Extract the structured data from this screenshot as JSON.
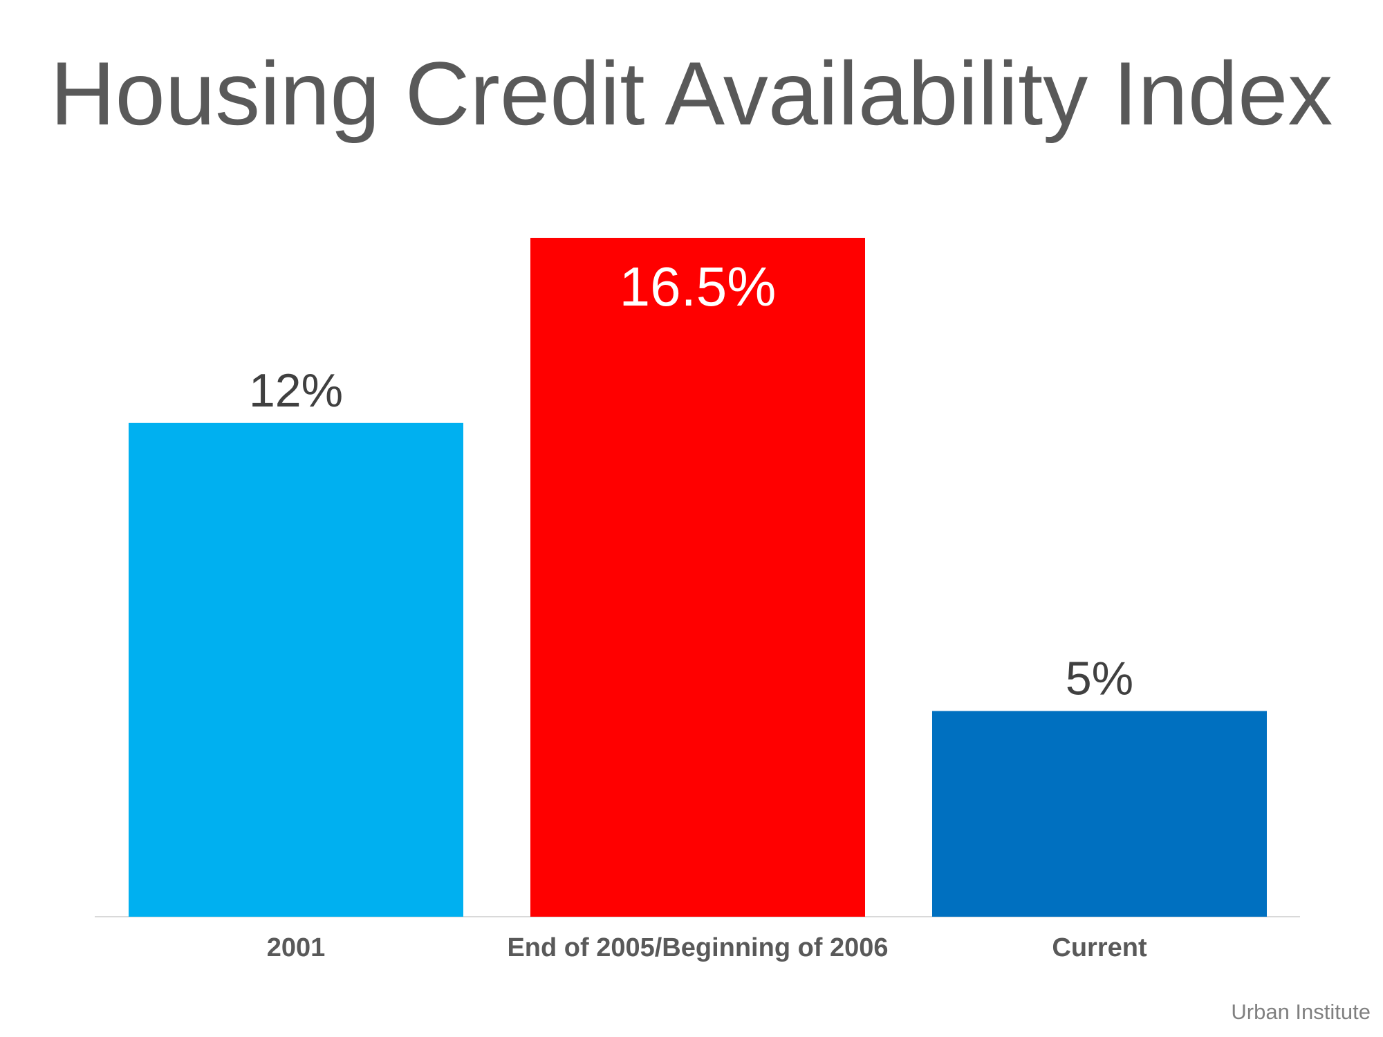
{
  "chart_data": {
    "type": "bar",
    "title": "Housing Credit Availability Index",
    "categories": [
      "2001",
      "End of 2005/Beginning of 2006",
      "Current"
    ],
    "values": [
      12,
      16.5,
      5
    ],
    "value_labels": [
      "12%",
      "16.5%",
      "5%"
    ],
    "unit": "%",
    "bar_colors": [
      "#00B0F0",
      "#FF0000",
      "#0070C0"
    ],
    "ylim": [
      0,
      16.5
    ],
    "grid": false,
    "legend": "none",
    "xlabel": "",
    "ylabel": ""
  },
  "source": "Urban Institute",
  "colors": {
    "title": "#595959",
    "category_label": "#595959",
    "value_label_dark": "#404040",
    "value_label_on_bar": "#ffffff",
    "baseline": "#D9D9D9",
    "source": "#808080"
  }
}
